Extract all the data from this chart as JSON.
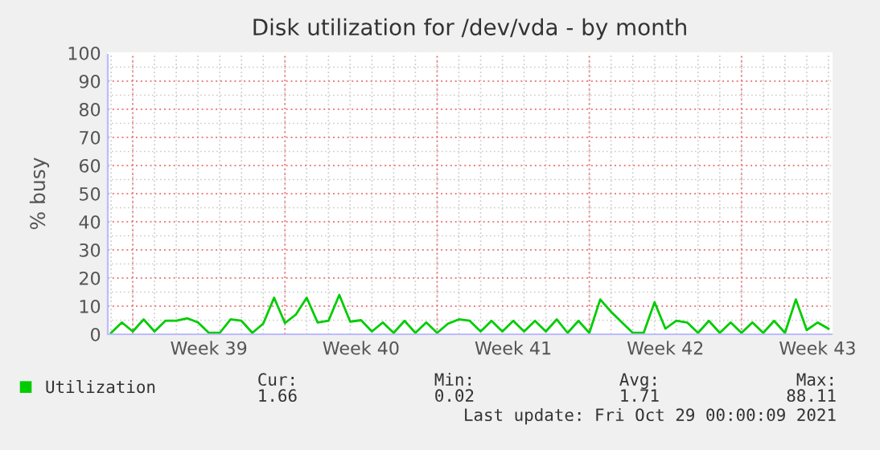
{
  "chart_data": {
    "type": "line",
    "title": "Disk utilization for /dev/vda - by month",
    "ylabel": "% busy",
    "categories": [
      null,
      null,
      null,
      null,
      null,
      null,
      null,
      null,
      null,
      "Week 39",
      null,
      null,
      null,
      null,
      null,
      null,
      null,
      null,
      null,
      null,
      null,
      null,
      null,
      "Week 40",
      null,
      null,
      null,
      null,
      null,
      null,
      null,
      null,
      null,
      null,
      null,
      null,
      null,
      "Week 41",
      null,
      null,
      null,
      null,
      null,
      null,
      null,
      null,
      null,
      null,
      null,
      null,
      null,
      "Week 42",
      null,
      null,
      null,
      null,
      null,
      null,
      null,
      null,
      null,
      null,
      null,
      null,
      null,
      "Week 43",
      null
    ],
    "ylim": [
      0,
      100
    ],
    "yticks": [
      0,
      10,
      20,
      30,
      40,
      50,
      60,
      70,
      80,
      90,
      100
    ],
    "grid": true,
    "legend": "bottom left",
    "marker": "none",
    "line_style": "solid",
    "series": [
      {
        "name": "Utilization",
        "color": "#00cc00",
        "values": [
          0.5,
          4.2,
          1.0,
          5.3,
          1.0,
          4.8,
          4.8,
          5.7,
          4.2,
          0.5,
          0.5,
          5.3,
          4.8,
          0.5,
          3.8,
          13.0,
          4.0,
          7.0,
          13.0,
          4.2,
          4.8,
          14.0,
          4.5,
          5.0,
          1.0,
          4.2,
          0.5,
          4.8,
          0.5,
          4.2,
          0.5,
          3.8,
          5.3,
          4.8,
          1.0,
          4.8,
          1.0,
          4.8,
          1.0,
          4.8,
          1.0,
          5.3,
          0.5,
          4.8,
          0.5,
          12.4,
          8.0,
          4.2,
          0.5,
          0.5,
          11.4,
          2.0,
          4.8,
          4.2,
          0.5,
          4.8,
          0.5,
          4.2,
          0.5,
          4.2,
          0.5,
          4.8,
          0.5,
          12.4,
          1.5,
          4.2,
          2.0
        ]
      }
    ],
    "annotations": [
      "Cur:",
      "Min:",
      "Avg:",
      "Max:",
      "1.66",
      "0.02",
      "1.71",
      "88.11",
      "Last update: Fri Oct 29 00:00:09 2021"
    ]
  }
}
